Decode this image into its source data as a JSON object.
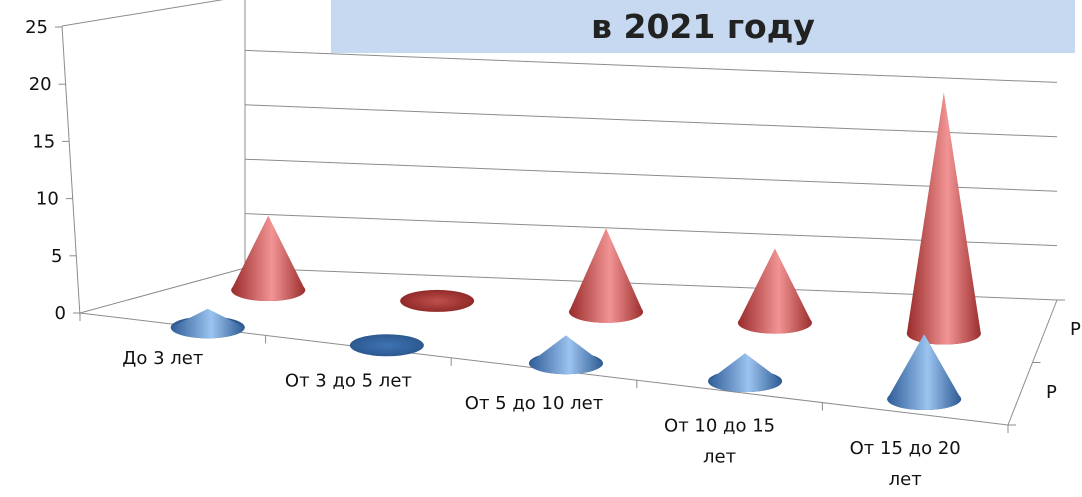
{
  "chart_data": {
    "type": "3d-cone-column",
    "title": "в 2021 году",
    "categories": [
      "До 3 лет",
      "От 3 до 5 лет",
      "От 5 до 10 лет",
      "От 10 до 15 лет",
      "От 15 до 20 лет"
    ],
    "category_lines": [
      [
        "До 3 лет"
      ],
      [
        "От 3 до 5 лет"
      ],
      [
        "От 5 до 10 лет"
      ],
      [
        "От 10 до 15",
        "лет"
      ],
      [
        "От 15 до 20",
        "лет"
      ]
    ],
    "series": [
      {
        "label": "Р",
        "values": [
          2,
          0,
          3,
          3,
          7
        ],
        "color": "#4f81bd"
      },
      {
        "label": "Р",
        "values": [
          8,
          0,
          9,
          8,
          26
        ],
        "color": "#c0504d"
      }
    ],
    "ylim": [
      0,
      25
    ],
    "yticks": [
      "0",
      "5",
      "10",
      "15",
      "20",
      "25"
    ],
    "grid": true
  }
}
